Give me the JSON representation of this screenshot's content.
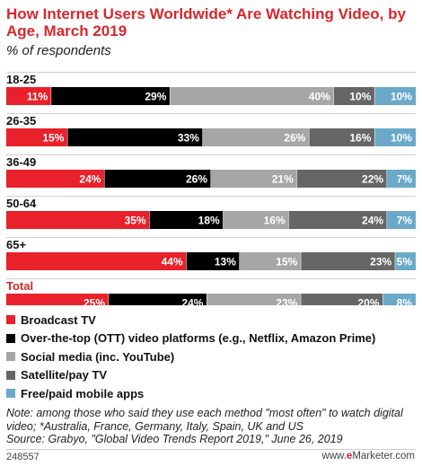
{
  "header": {
    "title": "How Internet Users Worldwide* Are Watching Video, by Age, March 2019",
    "subtitle": "% of respondents"
  },
  "chart_data": {
    "type": "bar",
    "orientation": "horizontal",
    "stacked": true,
    "categories": [
      "18-25",
      "26-35",
      "36-49",
      "50-64",
      "65+",
      "Total"
    ],
    "series": [
      {
        "name": "Broadcast TV",
        "color": "#e8212a",
        "values": [
          11,
          15,
          24,
          35,
          44,
          25
        ]
      },
      {
        "name": "Over-the-top (OTT) video platforms (e.g., Netflix, Amazon Prime)",
        "color": "#000000",
        "values": [
          29,
          33,
          26,
          18,
          13,
          24
        ]
      },
      {
        "name": "Social media (inc. YouTube)",
        "color": "#a6a6a6",
        "values": [
          40,
          26,
          21,
          16,
          15,
          23
        ]
      },
      {
        "name": "Satellite/pay TV",
        "color": "#666666",
        "values": [
          10,
          16,
          22,
          24,
          23,
          20
        ]
      },
      {
        "name": "Free/paid mobile apps",
        "color": "#6aa9c8",
        "values": [
          10,
          10,
          7,
          7,
          5,
          8
        ]
      }
    ],
    "value_suffix": "%",
    "legend_position": "bottom"
  },
  "notes": {
    "line1": "Note: among those who said they use each method \"most often\" to watch digital video; *Australia, France, Germany, Italy, Spain, UK and US",
    "line2": "Source: Grabyo, \"Global Video Trends Report 2019,\" June 26, 2019"
  },
  "footer": {
    "chart_id": "248557",
    "brand_prefix": "www.",
    "brand_mark": "e",
    "brand_suffix": "Marketer.com"
  }
}
